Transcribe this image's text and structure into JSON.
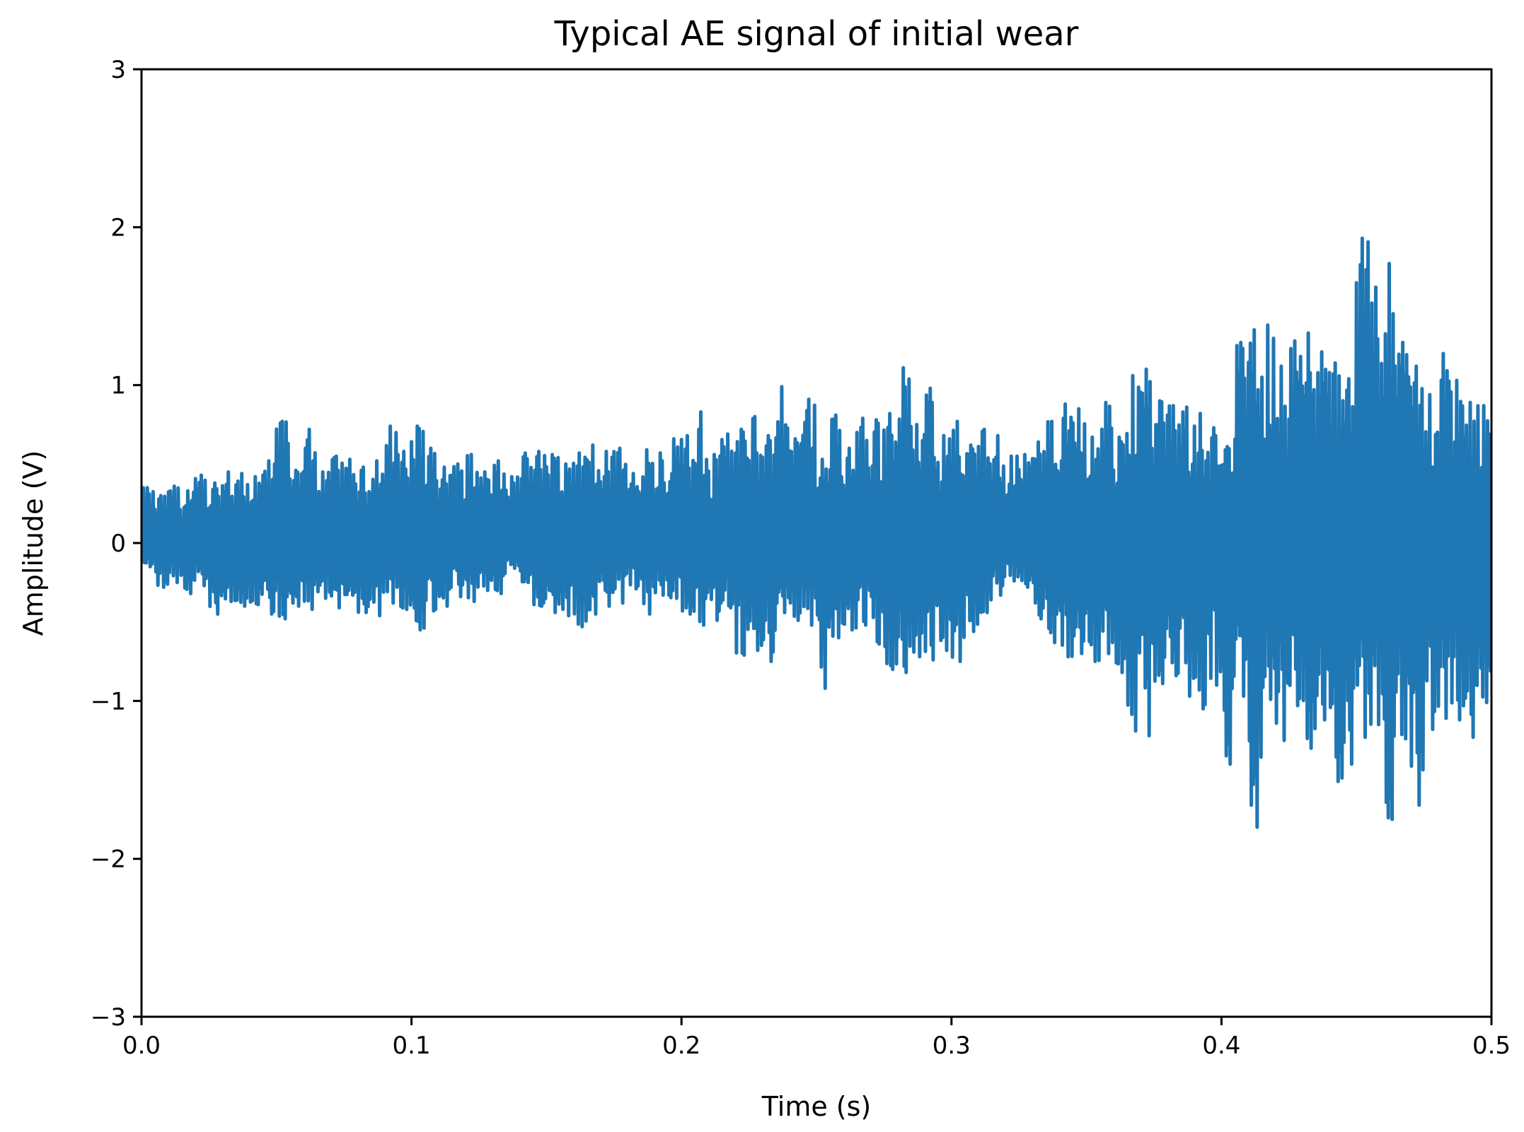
{
  "chart_data": {
    "type": "line",
    "title": "Typical AE signal of initial wear",
    "xlabel": "Time (s)",
    "ylabel": "Amplitude (V)",
    "xlim": [
      0.0,
      0.5
    ],
    "ylim": [
      -3,
      3
    ],
    "x_ticks": [
      0.0,
      0.1,
      0.2,
      0.3,
      0.4,
      0.5
    ],
    "x_tick_labels": [
      "0.0",
      "0.1",
      "0.2",
      "0.3",
      "0.4",
      "0.5"
    ],
    "y_ticks": [
      -3,
      -2,
      -1,
      0,
      1,
      2,
      3
    ],
    "y_tick_labels": [
      "−3",
      "−2",
      "−1",
      "0",
      "1",
      "2",
      "3"
    ],
    "grid": false,
    "series": [
      {
        "color": "#1f77b4",
        "x": [
          0.0,
          0.005,
          0.01,
          0.015,
          0.02,
          0.025,
          0.03,
          0.035,
          0.04,
          0.045,
          0.05,
          0.055,
          0.06,
          0.065,
          0.07,
          0.075,
          0.08,
          0.085,
          0.09,
          0.095,
          0.1,
          0.105,
          0.11,
          0.115,
          0.12,
          0.125,
          0.13,
          0.135,
          0.14,
          0.145,
          0.15,
          0.155,
          0.16,
          0.165,
          0.17,
          0.175,
          0.18,
          0.185,
          0.19,
          0.195,
          0.2,
          0.205,
          0.21,
          0.215,
          0.22,
          0.225,
          0.23,
          0.235,
          0.24,
          0.245,
          0.25,
          0.255,
          0.26,
          0.265,
          0.27,
          0.275,
          0.28,
          0.285,
          0.29,
          0.295,
          0.3,
          0.305,
          0.31,
          0.315,
          0.32,
          0.325,
          0.33,
          0.335,
          0.34,
          0.345,
          0.35,
          0.355,
          0.36,
          0.365,
          0.37,
          0.375,
          0.38,
          0.385,
          0.39,
          0.395,
          0.4,
          0.405,
          0.41,
          0.415,
          0.42,
          0.425,
          0.43,
          0.435,
          0.44,
          0.445,
          0.45,
          0.455,
          0.46,
          0.465,
          0.47,
          0.475,
          0.48,
          0.485,
          0.49,
          0.495,
          0.5
        ],
        "max": [
          0.35,
          0.3,
          0.36,
          0.33,
          0.43,
          0.38,
          0.45,
          0.44,
          0.42,
          0.52,
          0.77,
          0.46,
          0.72,
          0.45,
          0.55,
          0.53,
          0.48,
          0.52,
          0.74,
          0.58,
          0.74,
          0.6,
          0.48,
          0.5,
          0.56,
          0.45,
          0.52,
          0.42,
          0.57,
          0.58,
          0.56,
          0.5,
          0.57,
          0.62,
          0.58,
          0.6,
          0.44,
          0.59,
          0.57,
          0.66,
          0.68,
          0.83,
          0.56,
          0.69,
          0.72,
          0.8,
          0.68,
          0.99,
          0.66,
          0.91,
          0.53,
          0.81,
          0.6,
          0.79,
          0.78,
          0.82,
          1.11,
          0.75,
          0.98,
          0.68,
          0.77,
          0.62,
          0.72,
          0.68,
          0.55,
          0.56,
          0.64,
          0.77,
          0.88,
          0.85,
          0.67,
          0.89,
          0.67,
          1.06,
          1.1,
          0.9,
          0.87,
          0.86,
          0.82,
          0.73,
          0.61,
          1.27,
          1.35,
          1.38,
          1.12,
          1.28,
          1.33,
          1.21,
          1.14,
          1.04,
          1.93,
          1.62,
          1.77,
          1.27,
          1.12,
          0.94,
          1.2,
          1.03,
          0.89,
          0.87,
          0.6
        ],
        "min": [
          -0.15,
          -0.28,
          -0.25,
          -0.32,
          -0.27,
          -0.45,
          -0.37,
          -0.4,
          -0.39,
          -0.45,
          -0.48,
          -0.4,
          -0.42,
          -0.35,
          -0.41,
          -0.33,
          -0.44,
          -0.46,
          -0.38,
          -0.42,
          -0.55,
          -0.43,
          -0.4,
          -0.34,
          -0.37,
          -0.3,
          -0.32,
          -0.16,
          -0.25,
          -0.4,
          -0.44,
          -0.46,
          -0.53,
          -0.45,
          -0.4,
          -0.38,
          -0.29,
          -0.45,
          -0.33,
          -0.35,
          -0.45,
          -0.52,
          -0.49,
          -0.41,
          -0.71,
          -0.68,
          -0.75,
          -0.44,
          -0.49,
          -0.52,
          -0.92,
          -0.6,
          -0.55,
          -0.52,
          -0.64,
          -0.8,
          -0.82,
          -0.72,
          -0.74,
          -0.68,
          -0.75,
          -0.56,
          -0.44,
          -0.33,
          -0.24,
          -0.28,
          -0.48,
          -0.63,
          -0.72,
          -0.7,
          -0.75,
          -0.7,
          -0.82,
          -1.19,
          -1.22,
          -0.89,
          -0.84,
          -0.97,
          -1.05,
          -0.9,
          -1.4,
          -0.97,
          -1.8,
          -0.99,
          -1.25,
          -1.03,
          -1.3,
          -1.12,
          -1.51,
          -1.4,
          -1.23,
          -1.15,
          -1.75,
          -1.24,
          -1.66,
          -1.18,
          -1.11,
          -1.12,
          -1.23,
          -1.01,
          -0.57
        ]
      }
    ]
  }
}
